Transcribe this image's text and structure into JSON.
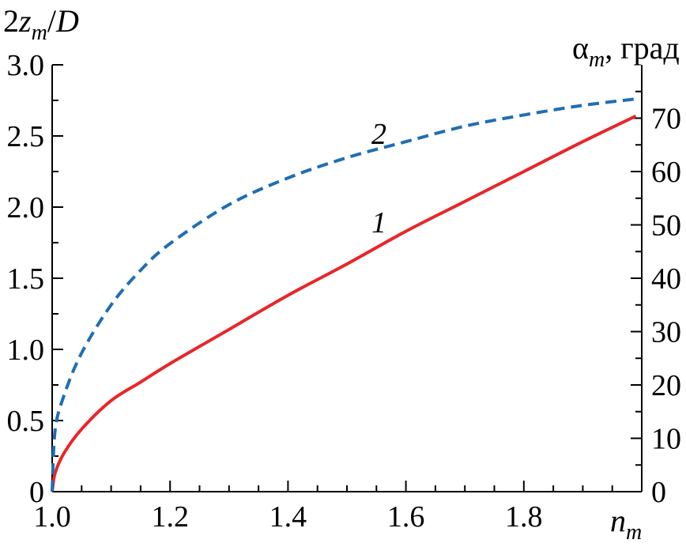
{
  "chart_data": {
    "type": "line",
    "title": "",
    "xlabel": {
      "base": "n",
      "sub": "m"
    },
    "ylabel_left": {
      "prefix": "2",
      "var": "z",
      "sub": "m",
      "suffix": "/",
      "denom": "D"
    },
    "ylabel_right": {
      "var": "α",
      "sub": "m",
      "suffix": ", град"
    },
    "xlim": [
      1.0,
      2.0
    ],
    "ylim_left": [
      0,
      3.0
    ],
    "ylim_right": [
      0,
      80
    ],
    "x_ticks": [
      1.0,
      1.2,
      1.4,
      1.6,
      1.8
    ],
    "x_tick_labels": [
      "1.0",
      "1.2",
      "1.4",
      "1.6",
      "1.8"
    ],
    "y_left_ticks": [
      0,
      0.5,
      1.0,
      1.5,
      2.0,
      2.5,
      3.0
    ],
    "y_left_tick_labels": [
      "0",
      "0.5",
      "1.0",
      "1.5",
      "2.0",
      "2.5",
      "3.0"
    ],
    "y_right_ticks": [
      0,
      10,
      20,
      30,
      40,
      50,
      60,
      70
    ],
    "y_right_tick_labels": [
      "0",
      "10",
      "20",
      "30",
      "40",
      "50",
      "60",
      "70"
    ],
    "grid": false,
    "legend": "none",
    "series": [
      {
        "label": "1",
        "axis": "left",
        "color": "#e8262b",
        "style": "solid",
        "x": [
          1.0,
          1.005,
          1.02,
          1.05,
          1.1,
          1.15,
          1.2,
          1.3,
          1.4,
          1.5,
          1.6,
          1.7,
          1.8,
          1.9,
          1.99
        ],
        "y": [
          0.0,
          0.13,
          0.27,
          0.44,
          0.64,
          0.77,
          0.9,
          1.14,
          1.38,
          1.6,
          1.83,
          2.04,
          2.25,
          2.46,
          2.64
        ]
      },
      {
        "label": "2",
        "axis": "right",
        "color": "#1f6eb3",
        "style": "dashed",
        "x": [
          1.0,
          1.005,
          1.02,
          1.05,
          1.1,
          1.15,
          1.2,
          1.3,
          1.4,
          1.5,
          1.6,
          1.7,
          1.8,
          1.9,
          1.99
        ],
        "y": [
          0.0,
          11.5,
          18.0,
          26.0,
          35.0,
          41.5,
          46.5,
          53.8,
          58.8,
          62.6,
          65.6,
          68.5,
          70.6,
          72.4,
          73.6
        ]
      }
    ]
  }
}
